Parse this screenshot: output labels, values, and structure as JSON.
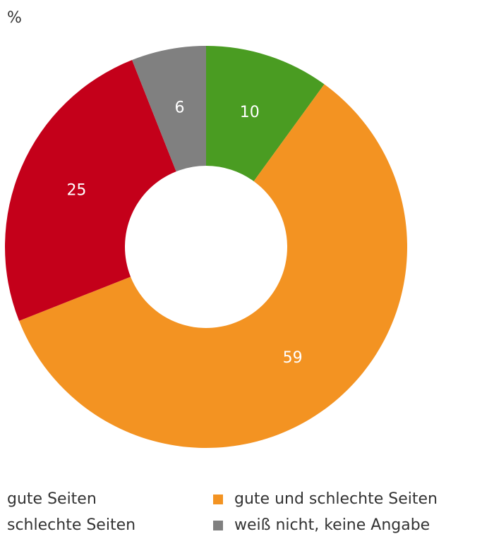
{
  "chart_data": {
    "type": "donut",
    "unit": "%",
    "categories": [
      "gute Seiten",
      "gute und schlechte Seiten",
      "schlechte Seiten",
      "weiß nicht, keine Angabe"
    ],
    "values": [
      10,
      59,
      25,
      6
    ],
    "colors": [
      "#4a9c22",
      "#f39322",
      "#c4001a",
      "#808080"
    ]
  }
}
